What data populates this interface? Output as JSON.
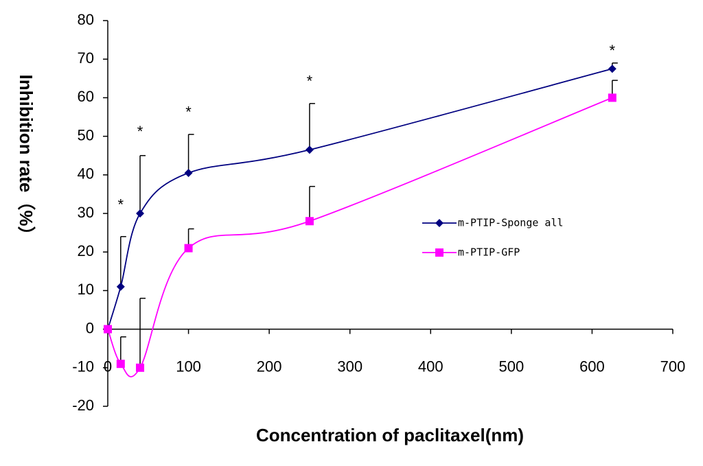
{
  "chart_data": {
    "type": "line",
    "xlabel": "Concentration of paclitaxel(nm)",
    "ylabel": "Inhibition rate（%）",
    "x": [
      0,
      16,
      40,
      100,
      250,
      625
    ],
    "series": [
      {
        "name": "m-PTIP-Sponge all",
        "color": "#000080",
        "marker": "diamond",
        "values": [
          0,
          11,
          30,
          40.5,
          46.5,
          67.5
        ],
        "errors": [
          0,
          13,
          15,
          10,
          12,
          1.5
        ]
      },
      {
        "name": "m-PTIP-GFP",
        "color": "#ff00ff",
        "marker": "square",
        "values": [
          0,
          -9,
          -10,
          21,
          28,
          60
        ],
        "errors": [
          0,
          7,
          18,
          5,
          9,
          4.5
        ]
      }
    ],
    "annotations": [
      {
        "text": "*",
        "x": 16,
        "y": 32
      },
      {
        "text": "*",
        "x": 40,
        "y": 51
      },
      {
        "text": "*",
        "x": 100,
        "y": 56
      },
      {
        "text": "*",
        "x": 250,
        "y": 64
      },
      {
        "text": "*",
        "x": 625,
        "y": 72
      }
    ],
    "xlim": [
      0,
      700
    ],
    "xticks": [
      0,
      100,
      200,
      300,
      400,
      500,
      600,
      700
    ],
    "ylim": [
      -20,
      80
    ],
    "yticks": [
      -20,
      -10,
      0,
      10,
      20,
      30,
      40,
      50,
      60,
      70,
      80
    ],
    "smooth": true,
    "grid": false,
    "legend": "right"
  }
}
